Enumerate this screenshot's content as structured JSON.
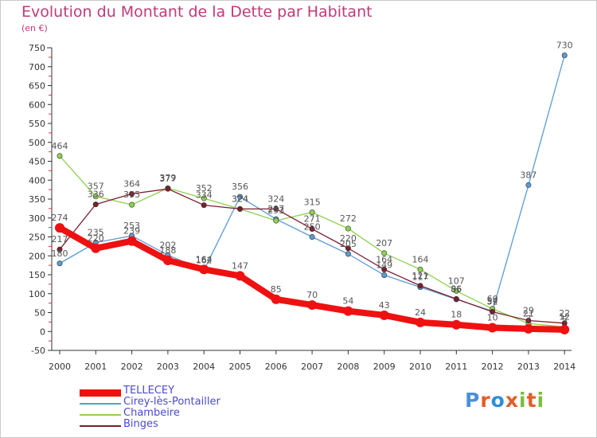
{
  "title": "Evolution du Montant de la Dette par Habitant",
  "unit_label": "(en €)",
  "brand": {
    "letters": [
      {
        "ch": "P",
        "color": "#4a90d9"
      },
      {
        "ch": "r",
        "color": "#e35d2a"
      },
      {
        "ch": "o",
        "color": "#2f8fd6"
      },
      {
        "ch": "x",
        "color": "#e35d2a"
      },
      {
        "ch": "i",
        "color": "#7bbf3a"
      },
      {
        "ch": "t",
        "color": "#e35d2a"
      },
      {
        "ch": "i",
        "color": "#7bbf3a"
      }
    ]
  },
  "chart_data": {
    "type": "line",
    "x": [
      2000,
      2001,
      2002,
      2003,
      2004,
      2005,
      2006,
      2007,
      2008,
      2009,
      2010,
      2011,
      2012,
      2013,
      2014
    ],
    "ylim": [
      -50,
      750
    ],
    "yticks": [
      -50,
      0,
      50,
      100,
      150,
      200,
      250,
      300,
      350,
      400,
      450,
      500,
      550,
      600,
      650,
      700,
      750
    ],
    "grid": false,
    "legend_position": "bottom-left",
    "series": [
      {
        "name": "TELLECEY",
        "color": "#ee1111",
        "values": [
          274,
          220,
          239,
          188,
          164,
          147,
          85,
          70,
          54,
          43,
          24,
          18,
          10,
          7,
          5
        ]
      },
      {
        "name": "Cirey-lès-Pontailler",
        "color": "#5b9bd5",
        "values": [
          180,
          235,
          253,
          202,
          162,
          356,
          297,
          250,
          205,
          149,
          117,
          85,
          54,
          387,
          730
        ]
      },
      {
        "name": "Chambeire",
        "color": "#8fd14f",
        "values": [
          464,
          357,
          335,
          379,
          352,
          324,
          293,
          315,
          272,
          207,
          164,
          107,
          60,
          21,
          12
        ]
      },
      {
        "name": "Binges",
        "color": "#7b1f2e",
        "values": [
          217,
          336,
          364,
          377,
          334,
          324,
          324,
          271,
          220,
          164,
          121,
          86,
          52,
          29,
          22
        ]
      }
    ]
  }
}
